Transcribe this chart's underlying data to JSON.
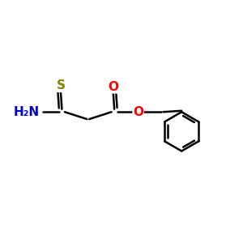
{
  "background_color": "#ffffff",
  "bond_color": "#000000",
  "bond_width": 1.8,
  "atom_colors": {
    "S": "#808000",
    "O": "#ff0000",
    "N": "#0000cd",
    "C": "#000000"
  },
  "font_size_atom": 11,
  "xlim": [
    0,
    10
  ],
  "ylim": [
    0,
    10
  ]
}
